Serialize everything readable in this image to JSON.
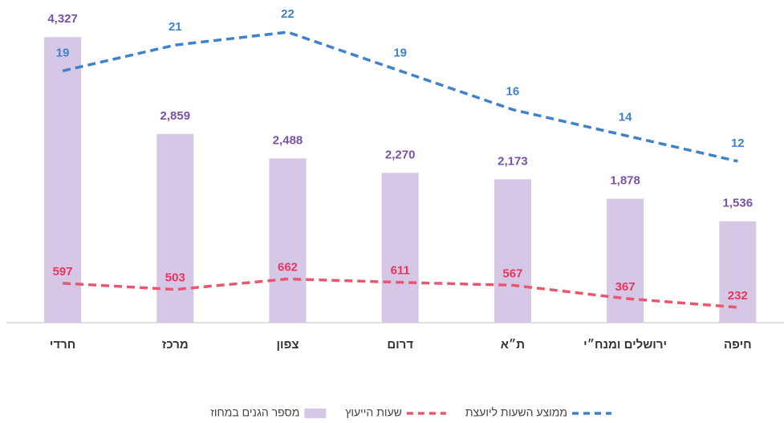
{
  "chart_data": {
    "type": "bar",
    "categories": [
      "חרדי",
      "מרכז",
      "צפון",
      "דרום",
      "ת״א",
      "ירושלים ומנח״י",
      "חיפה"
    ],
    "ylim": [
      0,
      4500
    ],
    "y2lim": [
      -0.5,
      22.5
    ],
    "grid": false,
    "legend": "bottom",
    "series": [
      {
        "name": "מספר הגנים במחוז",
        "type": "bar",
        "color": "#d6c7e7",
        "label_color": "#7a52a5",
        "values": [
          4327,
          2859,
          2488,
          2270,
          2173,
          1878,
          1536
        ],
        "value_labels": [
          "4,327",
          "2,859",
          "2,488",
          "2,270",
          "2,173",
          "1,878",
          "1,536"
        ]
      },
      {
        "name": "שעות הייעוץ",
        "type": "line",
        "color": "#e9576f",
        "label_color": "#e8365a",
        "values": [
          597,
          503,
          662,
          611,
          567,
          367,
          232
        ]
      },
      {
        "name": "ממוצע השעות ליועצת",
        "type": "line",
        "axis": "y2",
        "color": "#3f82c9",
        "label_color": "#3f82c9",
        "values": [
          19,
          21,
          22,
          19,
          16,
          14,
          12
        ]
      }
    ]
  }
}
